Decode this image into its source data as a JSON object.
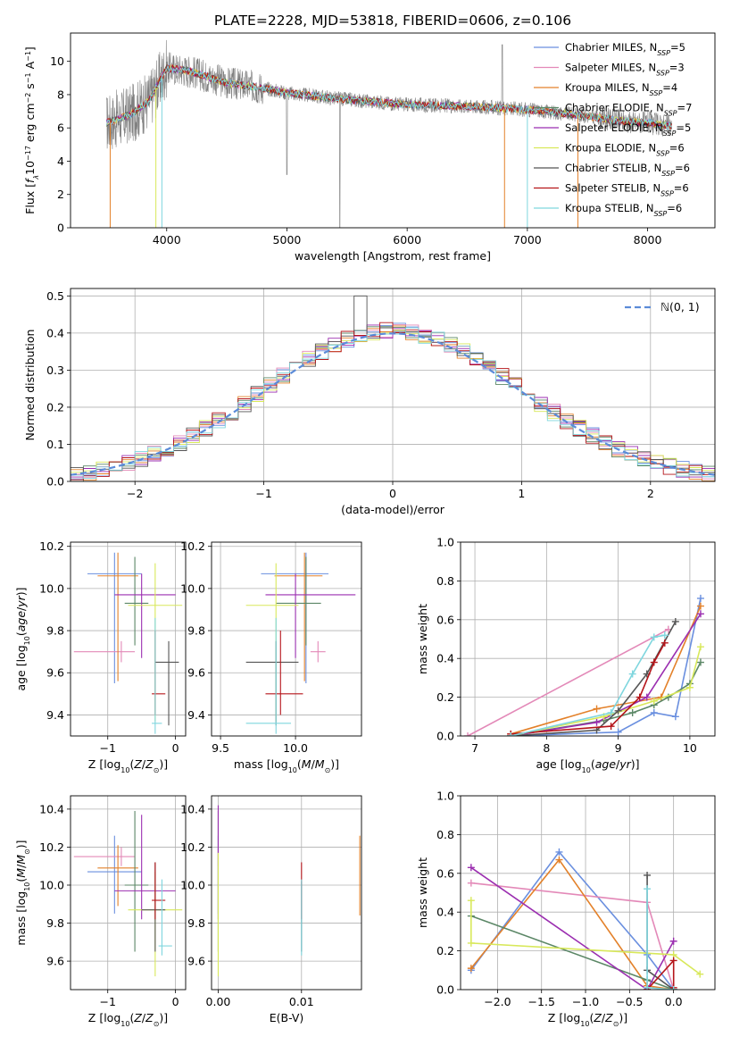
{
  "title": "PLATE=2228, MJD=53818, FIBERID=0606, z=0.106",
  "series_colors": [
    "#6a8fdf",
    "#e389b8",
    "#e3812a",
    "#5b8766",
    "#9b2eb0",
    "#d8e85a",
    "#555555",
    "#b5151a",
    "#7fd6de"
  ],
  "series_legend": [
    "Chabrier MILES, N_SSP=5",
    "Salpeter MILES, N_SSP=3",
    "Kroupa MILES, N_SSP=4",
    "Chabrier ELODIE, N_SSP=7",
    "Salpeter ELODIE, N_SSP=5",
    "Kroupa ELODIE, N_SSP=6",
    "Chabrier STELIB, N_SSP=6",
    "Salpeter STELIB, N_SSP=6",
    "Kroupa STELIB, N_SSP=6"
  ],
  "chart_data": [
    {
      "id": "spectrum",
      "type": "line",
      "xlabel": "wavelength [Angstrom, rest frame]",
      "ylabel": "Flux [fλ10^-17 erg cm^-2 s^-1 A^-1]",
      "xlim": [
        3200,
        8560
      ],
      "ylim": [
        0,
        11.7
      ],
      "xticks": [
        4000,
        5000,
        6000,
        7000,
        8000
      ],
      "yticks": [
        0,
        2,
        4,
        6,
        8,
        10
      ],
      "grid": false,
      "legend": "top-right",
      "observed_color": "#808080",
      "continuum": {
        "x": [
          3500,
          3700,
          3850,
          4000,
          4200,
          4500,
          4800,
          5000,
          5500,
          6000,
          6500,
          7000,
          7400,
          7800,
          8000,
          8200
        ],
        "y": [
          6.3,
          6.8,
          7.6,
          9.6,
          9.4,
          8.7,
          8.4,
          8.1,
          7.7,
          7.4,
          7.3,
          7.1,
          6.8,
          6.4,
          6.3,
          6.1
        ]
      }
    },
    {
      "id": "residuals",
      "type": "line",
      "xlabel": "(data-model)/error",
      "ylabel": "Normed distribution",
      "xlim": [
        -2.5,
        2.5
      ],
      "ylim": [
        0,
        0.52
      ],
      "xticks": [
        -2,
        -1,
        0,
        1,
        2
      ],
      "yticks": [
        0.0,
        0.1,
        0.2,
        0.3,
        0.4,
        0.5
      ],
      "grid": true,
      "legend": "top-right",
      "gaussian_label": "N(0,1)",
      "gaussian_color": "#5b8bd8"
    },
    {
      "id": "age_vs_Z",
      "type": "scatter",
      "xlabel": "Z [log10(Z/Z☉)]",
      "ylabel": "age [log10(age/yr)]",
      "xlim": [
        -1.55,
        0.15
      ],
      "ylim": [
        9.3,
        10.22
      ],
      "xticks": [
        -1,
        0
      ],
      "yticks": [
        9.4,
        9.6,
        9.8,
        10.0,
        10.2
      ],
      "grid": true,
      "points": [
        {
          "x": -0.9,
          "xerr": [
            0.4,
            0.4
          ],
          "y": 10.07,
          "yerr": [
            0.52,
            0.1
          ]
        },
        {
          "x": -0.8,
          "xerr": [
            0.7,
            0.2
          ],
          "y": 9.7,
          "yerr": [
            0.05,
            0.05
          ]
        },
        {
          "x": -0.85,
          "xerr": [
            0.3,
            0.3
          ],
          "y": 10.06,
          "yerr": [
            0.5,
            0.11
          ]
        },
        {
          "x": -0.6,
          "xerr": [
            0.15,
            0.2
          ],
          "y": 9.93,
          "yerr": [
            0.2,
            0.22
          ]
        },
        {
          "x": -0.5,
          "xerr": [
            0.4,
            0.5
          ],
          "y": 9.97,
          "yerr": [
            0.3,
            0.1
          ]
        },
        {
          "x": -0.3,
          "xerr": [
            0.4,
            0.4
          ],
          "y": 9.92,
          "yerr": [
            0.55,
            0.2
          ]
        },
        {
          "x": -0.1,
          "xerr": [
            0.2,
            0.15
          ],
          "y": 9.65,
          "yerr": [
            0.3,
            0.1
          ]
        },
        {
          "x": -0.3,
          "xerr": [
            0.05,
            0.15
          ],
          "y": 9.5,
          "yerr": [
            0.1,
            0.3
          ]
        },
        {
          "x": -0.3,
          "xerr": [
            0.05,
            0.1
          ],
          "y": 9.36,
          "yerr": [
            0.05,
            0.5
          ]
        }
      ]
    },
    {
      "id": "age_vs_mass",
      "type": "scatter",
      "xlabel": "mass [log10(M/M☉)]",
      "ylabel": "",
      "xlim": [
        9.44,
        10.44
      ],
      "ylim": [
        9.3,
        10.22
      ],
      "xticks": [
        9.5,
        10.0
      ],
      "yticks": [
        9.4,
        9.6,
        9.8,
        10.0,
        10.2
      ],
      "grid": true,
      "points": [
        {
          "x": 10.07,
          "xerr": [
            0.3,
            0.15
          ],
          "y": 10.07,
          "yerr": [
            0.52,
            0.1
          ]
        },
        {
          "x": 10.15,
          "xerr": [
            0.05,
            0.05
          ],
          "y": 9.7,
          "yerr": [
            0.05,
            0.05
          ]
        },
        {
          "x": 10.06,
          "xerr": [
            0.2,
            0.12
          ],
          "y": 10.06,
          "yerr": [
            0.5,
            0.11
          ]
        },
        {
          "x": 10.07,
          "xerr": [
            0.2,
            0.1
          ],
          "y": 9.93,
          "yerr": [
            0.2,
            0.22
          ]
        },
        {
          "x": 10.0,
          "xerr": [
            0.2,
            0.4
          ],
          "y": 9.97,
          "yerr": [
            0.3,
            0.1
          ]
        },
        {
          "x": 9.87,
          "xerr": [
            0.2,
            0.15
          ],
          "y": 9.92,
          "yerr": [
            0.55,
            0.2
          ]
        },
        {
          "x": 9.87,
          "xerr": [
            0.2,
            0.15
          ],
          "y": 9.65,
          "yerr": [
            0.3,
            0.1
          ]
        },
        {
          "x": 9.9,
          "xerr": [
            0.1,
            0.15
          ],
          "y": 9.5,
          "yerr": [
            0.1,
            0.3
          ]
        },
        {
          "x": 9.87,
          "xerr": [
            0.2,
            0.1
          ],
          "y": 9.36,
          "yerr": [
            0.05,
            0.5
          ]
        }
      ]
    },
    {
      "id": "massweight_vs_age",
      "type": "line",
      "xlabel": "age [log10(age/yr)]",
      "ylabel": "mass weight",
      "xlim": [
        6.8,
        10.35
      ],
      "ylim": [
        0,
        1.0
      ],
      "xticks": [
        7,
        8,
        9,
        10
      ],
      "yticks": [
        0.0,
        0.2,
        0.4,
        0.6,
        0.8,
        1.0
      ],
      "grid": true,
      "series": [
        {
          "x": [
            7.5,
            9.0,
            9.5,
            9.8,
            10.15
          ],
          "y": [
            0.0,
            0.02,
            0.12,
            0.1,
            0.71
          ]
        },
        {
          "x": [
            6.9,
            9.7
          ],
          "y": [
            0.0,
            0.55
          ]
        },
        {
          "x": [
            7.5,
            8.7,
            9.6,
            10.15
          ],
          "y": [
            0.01,
            0.14,
            0.2,
            0.67
          ]
        },
        {
          "x": [
            7.5,
            8.8,
            9.2,
            9.5,
            9.7,
            10.0,
            10.15
          ],
          "y": [
            0.0,
            0.08,
            0.12,
            0.16,
            0.2,
            0.27,
            0.38
          ]
        },
        {
          "x": [
            7.5,
            8.7,
            9.4,
            10.15
          ],
          "y": [
            0.0,
            0.07,
            0.2,
            0.63
          ]
        },
        {
          "x": [
            7.5,
            8.8,
            9.5,
            10.0,
            10.15
          ],
          "y": [
            0.0,
            0.1,
            0.18,
            0.25,
            0.46
          ]
        },
        {
          "x": [
            7.5,
            8.7,
            9.0,
            9.4,
            9.8
          ],
          "y": [
            0.0,
            0.03,
            0.13,
            0.32,
            0.59
          ]
        },
        {
          "x": [
            7.5,
            8.9,
            9.3,
            9.5,
            9.65
          ],
          "y": [
            0.01,
            0.05,
            0.2,
            0.38,
            0.48
          ]
        },
        {
          "x": [
            7.5,
            8.9,
            9.2,
            9.5,
            9.65
          ],
          "y": [
            0.0,
            0.12,
            0.32,
            0.51,
            0.52
          ]
        }
      ]
    },
    {
      "id": "mass_vs_Z",
      "type": "scatter",
      "xlabel": "Z [log10(Z/Z☉)]",
      "ylabel": "mass [log10(M/M☉)]",
      "xlim": [
        -1.55,
        0.15
      ],
      "ylim": [
        9.45,
        10.47
      ],
      "xticks": [
        -1,
        0
      ],
      "yticks": [
        9.6,
        9.8,
        10.0,
        10.2,
        10.4
      ],
      "grid": true,
      "points": [
        {
          "x": -0.9,
          "xerr": [
            0.4,
            0.4
          ],
          "y": 10.07,
          "yerr": [
            0.22,
            0.19
          ]
        },
        {
          "x": -0.8,
          "xerr": [
            0.7,
            0.2
          ],
          "y": 10.15,
          "yerr": [
            0.05,
            0.05
          ]
        },
        {
          "x": -0.85,
          "xerr": [
            0.3,
            0.3
          ],
          "y": 10.09,
          "yerr": [
            0.2,
            0.12
          ]
        },
        {
          "x": -0.6,
          "xerr": [
            0.15,
            0.2
          ],
          "y": 10.0,
          "yerr": [
            0.35,
            0.39
          ]
        },
        {
          "x": -0.5,
          "xerr": [
            0.4,
            0.5
          ],
          "y": 9.97,
          "yerr": [
            0.15,
            0.4
          ]
        },
        {
          "x": -0.3,
          "xerr": [
            0.4,
            0.4
          ],
          "y": 9.87,
          "yerr": [
            0.35,
            0.2
          ]
        },
        {
          "x": -0.3,
          "xerr": [
            0.2,
            0.15
          ],
          "y": 9.87,
          "yerr": [
            0.22,
            0.25
          ]
        },
        {
          "x": -0.3,
          "xerr": [
            0.05,
            0.15
          ],
          "y": 9.92,
          "yerr": [
            0.1,
            0.2
          ]
        },
        {
          "x": -0.2,
          "xerr": [
            0.05,
            0.15
          ],
          "y": 9.68,
          "yerr": [
            0.05,
            0.35
          ]
        }
      ]
    },
    {
      "id": "mass_vs_EBV",
      "type": "scatter",
      "xlabel": "E(B-V)",
      "ylabel": "",
      "xlim": [
        -0.0008,
        0.0172
      ],
      "ylim": [
        9.45,
        10.47
      ],
      "xticks": [
        0.0,
        0.01
      ],
      "yticks": [
        9.6,
        9.8,
        10.0,
        10.2,
        10.4
      ],
      "grid": true,
      "points": [
        {
          "x": 0.0,
          "xerr": [
            0,
            0
          ],
          "y": 10.07,
          "yerr": [
            0.22,
            0.19
          ]
        },
        {
          "x": 0.0,
          "xerr": [
            0,
            0
          ],
          "y": 10.15,
          "yerr": [
            0.05,
            0.05
          ]
        },
        {
          "x": 0.017,
          "xerr": [
            0,
            0
          ],
          "y": 10.09,
          "yerr": [
            0.25,
            0.17
          ]
        },
        {
          "x": 0.0,
          "xerr": [
            0,
            0
          ],
          "y": 10.0,
          "yerr": [
            0.35,
            0.39
          ]
        },
        {
          "x": 0.0,
          "xerr": [
            0,
            0
          ],
          "y": 9.97,
          "yerr": [
            0.15,
            0.45
          ]
        },
        {
          "x": 0.0,
          "xerr": [
            0,
            0
          ],
          "y": 9.87,
          "yerr": [
            0.35,
            0.3
          ]
        },
        {
          "x": 0.01,
          "xerr": [
            0,
            0
          ],
          "y": 9.87,
          "yerr": [
            0.22,
            0.15
          ]
        },
        {
          "x": 0.01,
          "xerr": [
            0,
            0
          ],
          "y": 9.92,
          "yerr": [
            0.1,
            0.2
          ]
        },
        {
          "x": 0.01,
          "xerr": [
            0,
            0
          ],
          "y": 9.68,
          "yerr": [
            0.05,
            0.35
          ]
        }
      ]
    },
    {
      "id": "massweight_vs_Z",
      "type": "line",
      "xlabel": "Z [log10(Z/Z☉)]",
      "ylabel": "mass weight",
      "xlim": [
        -2.42,
        0.47
      ],
      "ylim": [
        0,
        1.0
      ],
      "xticks": [
        -2.0,
        -1.5,
        -1.0,
        -0.5,
        0.0
      ],
      "yticks": [
        0.0,
        0.2,
        0.4,
        0.6,
        0.8,
        1.0
      ],
      "grid": true,
      "series": [
        {
          "x": [
            -2.3,
            -1.3,
            -0.3,
            0.0
          ],
          "y": [
            0.1,
            0.71,
            0.18,
            0.0
          ]
        },
        {
          "x": [
            -2.3,
            -0.3,
            0.0
          ],
          "y": [
            0.55,
            0.45,
            0.0
          ]
        },
        {
          "x": [
            -2.3,
            -1.3,
            -0.3,
            0.0
          ],
          "y": [
            0.11,
            0.67,
            0.02,
            0.0
          ]
        },
        {
          "x": [
            -2.3,
            -0.3,
            0.0
          ],
          "y": [
            0.38,
            0.05,
            0.0
          ]
        },
        {
          "x": [
            -2.3,
            -0.3,
            0.0
          ],
          "y": [
            0.63,
            0.0,
            0.25
          ]
        },
        {
          "x": [
            -2.3,
            -2.3,
            0.0,
            0.3
          ],
          "y": [
            0.46,
            0.24,
            0.18,
            0.08
          ]
        },
        {
          "x": [
            -0.3,
            -0.3,
            0.0
          ],
          "y": [
            0.59,
            0.1,
            0.0
          ]
        },
        {
          "x": [
            -0.3,
            0.0,
            0.0
          ],
          "y": [
            0.0,
            0.15,
            0.01
          ]
        },
        {
          "x": [
            -0.3,
            -0.3,
            0.0
          ],
          "y": [
            0.52,
            0.01,
            0.0
          ]
        }
      ]
    }
  ]
}
